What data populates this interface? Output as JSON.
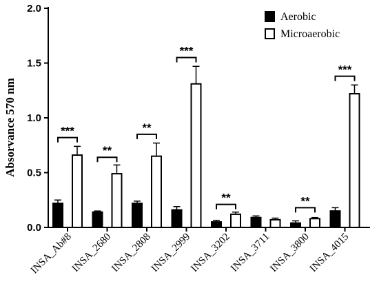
{
  "chart_data": {
    "type": "bar",
    "ylabel": "Absorvance 570 nm",
    "xlabel": "",
    "ylim": [
      0,
      2.0
    ],
    "yticks": [
      "0.0",
      "0.5",
      "1.0",
      "1.5",
      "2.0"
    ],
    "ytick_values": [
      0,
      0.5,
      1.0,
      1.5,
      2.0
    ],
    "categories": [
      "INSA_Ab#8",
      "INSA_2680",
      "INSA_2808",
      "INSA_2999",
      "INSA_3202",
      "INSA_3711",
      "INSA_3800",
      "INSA_4015"
    ],
    "series": [
      {
        "name": "Aerobic",
        "fill": "#000000",
        "values": [
          0.22,
          0.14,
          0.22,
          0.16,
          0.05,
          0.09,
          0.04,
          0.15
        ],
        "errors": [
          0.03,
          0.01,
          0.02,
          0.03,
          0.015,
          0.015,
          0.02,
          0.03
        ]
      },
      {
        "name": "Microaerobic",
        "fill": "#ffffff",
        "values": [
          0.66,
          0.49,
          0.65,
          1.31,
          0.12,
          0.07,
          0.08,
          1.22
        ],
        "errors": [
          0.08,
          0.08,
          0.12,
          0.16,
          0.02,
          0.015,
          0.01,
          0.08
        ]
      }
    ],
    "significance": [
      {
        "category": 0,
        "label": "***",
        "level": 0.82
      },
      {
        "category": 1,
        "label": "**",
        "level": 0.64
      },
      {
        "category": 2,
        "label": "**",
        "level": 0.85
      },
      {
        "category": 3,
        "label": "***",
        "level": 1.55
      },
      {
        "category": 4,
        "label": "**",
        "level": 0.21
      },
      {
        "category": 6,
        "label": "**",
        "level": 0.18
      },
      {
        "category": 7,
        "label": "***",
        "level": 1.38
      }
    ],
    "legend": {
      "position": "top-right",
      "entries": [
        "Aerobic",
        "Microaerobic"
      ]
    },
    "grid": false
  }
}
